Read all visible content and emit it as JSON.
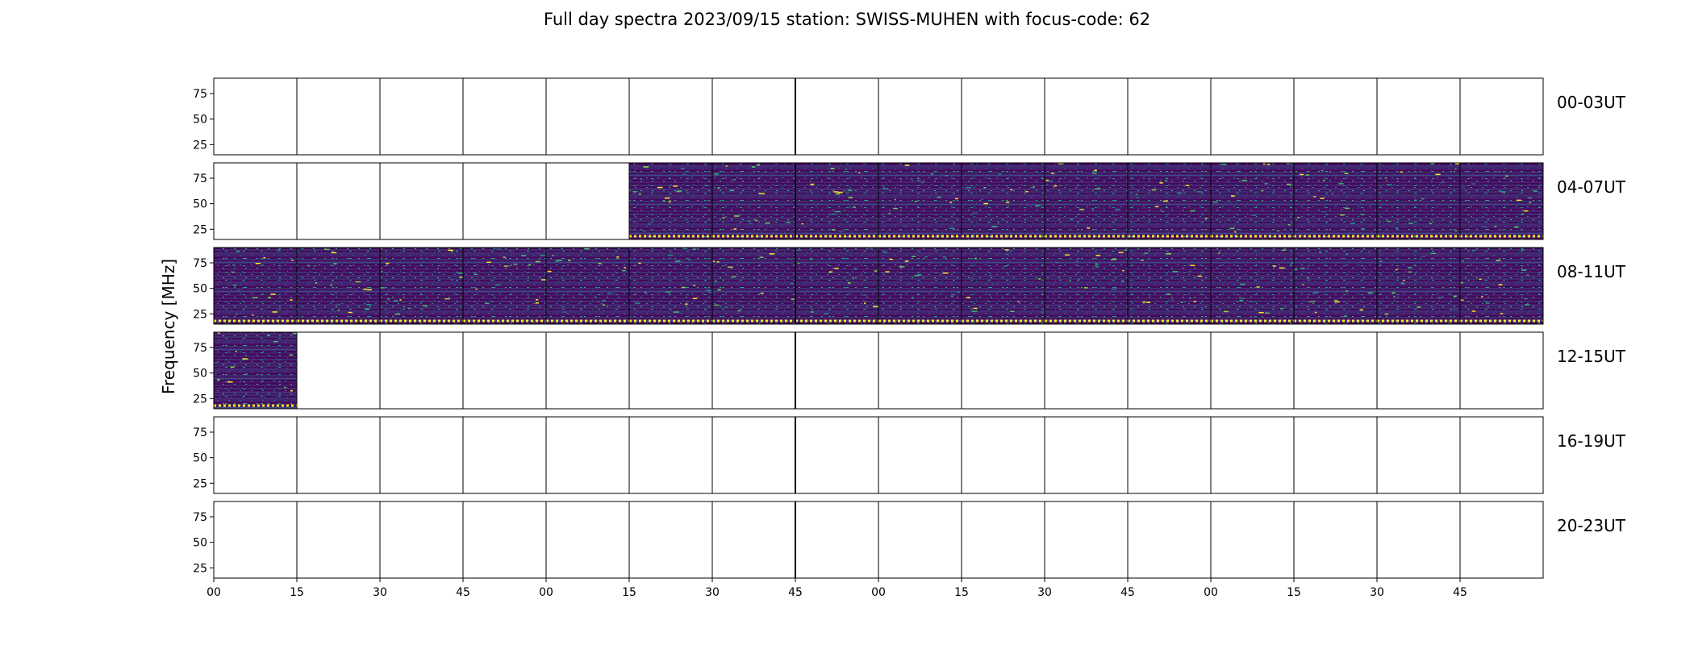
{
  "chart_data": {
    "type": "heatmap",
    "title": "Full day spectra 2023/09/15 station: SWISS-MUHEN with focus-code: 62",
    "ylabel": "Frequency [MHz]",
    "xlabel": "",
    "ylim": [
      15,
      90
    ],
    "yticks": [
      25,
      50,
      75
    ],
    "xticks": [
      "00",
      "15",
      "30",
      "45",
      "00",
      "15",
      "30",
      "45",
      "00",
      "15",
      "30",
      "45",
      "00",
      "15",
      "30",
      "45"
    ],
    "colormap": "viridis",
    "rows": [
      {
        "label": "00-03UT",
        "filled": [
          0,
          0,
          0,
          0,
          0,
          0,
          0,
          0,
          0,
          0,
          0,
          0,
          0,
          0,
          0,
          0
        ]
      },
      {
        "label": "04-07UT",
        "filled": [
          0,
          0,
          0,
          0,
          0,
          1,
          1,
          1,
          1,
          1,
          1,
          1,
          1,
          1,
          1,
          1
        ]
      },
      {
        "label": "08-11UT",
        "filled": [
          1,
          1,
          1,
          1,
          1,
          1,
          1,
          1,
          1,
          1,
          1,
          1,
          1,
          1,
          1,
          1
        ]
      },
      {
        "label": "12-15UT",
        "filled": [
          1,
          0,
          0,
          0,
          0,
          0,
          0,
          0,
          0,
          0,
          0,
          0,
          0,
          0,
          0,
          0
        ]
      },
      {
        "label": "16-19UT",
        "filled": [
          0,
          0,
          0,
          0,
          0,
          0,
          0,
          0,
          0,
          0,
          0,
          0,
          0,
          0,
          0,
          0
        ]
      },
      {
        "label": "20-23UT",
        "filled": [
          0,
          0,
          0,
          0,
          0,
          0,
          0,
          0,
          0,
          0,
          0,
          0,
          0,
          0,
          0,
          0
        ]
      }
    ]
  }
}
